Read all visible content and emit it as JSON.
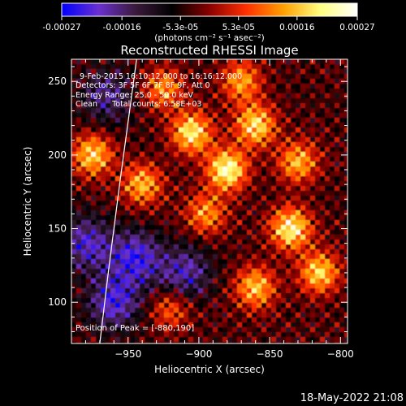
{
  "colorbar": {
    "tick_labels": [
      "-0.00027",
      "-0.00016",
      "-5.3e-05",
      "5.3e-05",
      "0.00016",
      "0.00027"
    ],
    "tick_values": [
      -0.00027,
      -0.00016,
      -5.3e-05,
      5.3e-05,
      0.00016,
      0.00027
    ],
    "range": [
      -0.00027,
      0.00027
    ],
    "unit_label": "(photons cm⁻² s⁻¹ asec⁻²)",
    "colors": [
      "#0000ff",
      "#6a30d0",
      "#3a1a3a",
      "#000000",
      "#8a0000",
      "#ff3000",
      "#ffa000",
      "#ffff80",
      "#ffffff"
    ]
  },
  "chart_data": {
    "type": "heatmap",
    "title": "Reconstructed RHESSI Image",
    "xlabel": "Heliocentric X (arcsec)",
    "ylabel": "Heliocentric Y (arcsec)",
    "xlim": [
      -990,
      -795
    ],
    "ylim": [
      72,
      265
    ],
    "x_ticks": [
      -950,
      -900,
      -850,
      -800
    ],
    "x_tick_labels": [
      "−950",
      "−900",
      "−850",
      "−800"
    ],
    "y_ticks": [
      100,
      150,
      200,
      250
    ],
    "y_tick_labels": [
      "100",
      "150",
      "200",
      "250"
    ],
    "annotations": [
      "9-Feb-2015 16:10:12.000 to 16:16:12.000",
      "Detectors: 3F 5F 6F 7F 8F 9F, Att 0",
      "Energy Range: 25.0 - 50.0 keV",
      "Clean      Total counts: 6.58E+03"
    ],
    "peak_label": "Position of Peak = [-880,190]",
    "peak": [
      -880,
      190
    ],
    "limb_curve": [
      [
        -970,
        72
      ],
      [
        -964,
        120
      ],
      [
        -956,
        180
      ],
      [
        -944,
        265
      ]
    ],
    "grid": false,
    "emission_regions": [
      {
        "x": -940,
        "y": 180,
        "level": 0.7
      },
      {
        "x": -975,
        "y": 200,
        "level": 0.8
      },
      {
        "x": -905,
        "y": 215,
        "level": 0.9
      },
      {
        "x": -880,
        "y": 190,
        "level": 1.0
      },
      {
        "x": -860,
        "y": 220,
        "level": 0.85
      },
      {
        "x": -830,
        "y": 195,
        "level": 0.7
      },
      {
        "x": -835,
        "y": 150,
        "level": 0.95
      },
      {
        "x": -815,
        "y": 120,
        "level": 0.8
      },
      {
        "x": -860,
        "y": 110,
        "level": 0.75
      },
      {
        "x": -895,
        "y": 160,
        "level": 0.6
      },
      {
        "x": -870,
        "y": 250,
        "level": 0.65
      },
      {
        "x": -925,
        "y": 245,
        "level": 0.6
      },
      {
        "x": -920,
        "y": 95,
        "level": 0.45
      }
    ],
    "depleted_regions": [
      {
        "x": -945,
        "y": 130,
        "level": -0.7
      },
      {
        "x": -960,
        "y": 100,
        "level": -0.65
      },
      {
        "x": -980,
        "y": 140,
        "level": -0.6
      },
      {
        "x": -910,
        "y": 120,
        "level": -0.55
      },
      {
        "x": -965,
        "y": 240,
        "level": -0.45
      }
    ]
  },
  "footer": {
    "timestamp": "18-May-2022 21:08"
  }
}
